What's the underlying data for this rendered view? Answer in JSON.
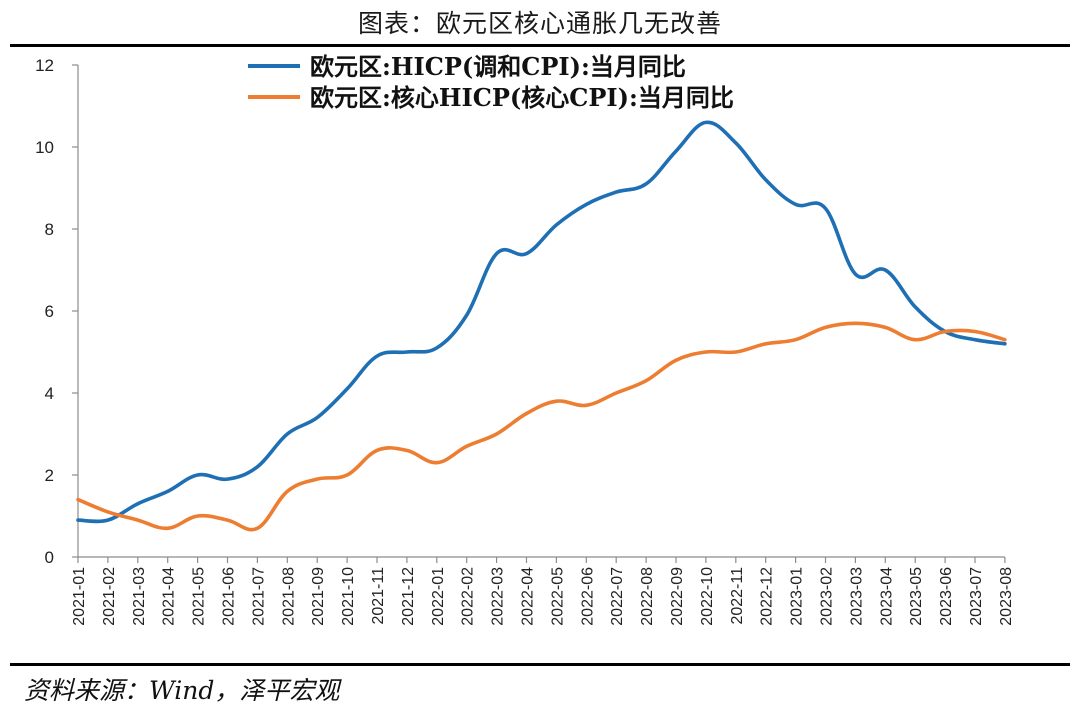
{
  "header": {
    "title": "图表：欧元区核心通胀几无改善"
  },
  "footer": {
    "source": "资料来源：Wind，泽平宏观"
  },
  "chart_data": {
    "type": "line",
    "categories": [
      "2021-01",
      "2021-02",
      "2021-03",
      "2021-04",
      "2021-05",
      "2021-06",
      "2021-07",
      "2021-08",
      "2021-09",
      "2021-10",
      "2021-11",
      "2021-12",
      "2022-01",
      "2022-02",
      "2022-03",
      "2022-04",
      "2022-05",
      "2022-06",
      "2022-07",
      "2022-08",
      "2022-09",
      "2022-10",
      "2022-11",
      "2022-12",
      "2023-01",
      "2023-02",
      "2023-03",
      "2023-04",
      "2023-05",
      "2023-06",
      "2023-07",
      "2023-08"
    ],
    "series": [
      {
        "name": "欧元区:HICP(调和CPI):当月同比",
        "color": "#1f6fb5",
        "values": [
          0.9,
          0.9,
          1.3,
          1.6,
          2.0,
          1.9,
          2.2,
          3.0,
          3.4,
          4.1,
          4.9,
          5.0,
          5.1,
          5.9,
          7.4,
          7.4,
          8.1,
          8.6,
          8.9,
          9.1,
          9.9,
          10.6,
          10.1,
          9.2,
          8.6,
          8.5,
          6.9,
          7.0,
          6.1,
          5.5,
          5.3,
          5.2
        ]
      },
      {
        "name": "欧元区:核心HICP(核心CPI):当月同比",
        "color": "#ed7d31",
        "values": [
          1.4,
          1.1,
          0.9,
          0.7,
          1.0,
          0.9,
          0.7,
          1.6,
          1.9,
          2.0,
          2.6,
          2.6,
          2.3,
          2.7,
          3.0,
          3.5,
          3.8,
          3.7,
          4.0,
          4.3,
          4.8,
          5.0,
          5.0,
          5.2,
          5.3,
          5.6,
          5.7,
          5.6,
          5.3,
          5.5,
          5.5,
          5.3
        ]
      }
    ],
    "yticks": [
      0,
      2,
      4,
      6,
      8,
      10,
      12
    ],
    "ylim": [
      0,
      12
    ],
    "grid": false,
    "legend_position": "top-center"
  }
}
